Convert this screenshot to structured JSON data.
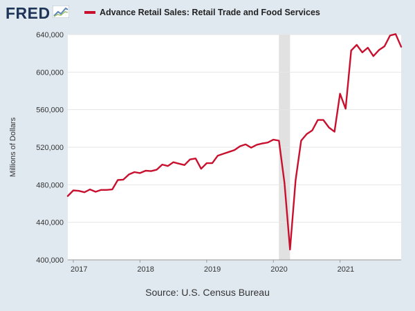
{
  "logo": {
    "text": "FRED",
    "icon": "line-chart-icon"
  },
  "legend": {
    "label": "Advance Retail Sales: Retail Trade and Food Services",
    "color": "#c8102e"
  },
  "source": "Source: U.S. Census Bureau",
  "chart_data": {
    "type": "line",
    "title": "Advance Retail Sales: Retail Trade and Food Services",
    "ylabel": "Millions of Dollars",
    "xlabel": "",
    "ylim": [
      400000,
      640000
    ],
    "xlim": [
      "2016-12",
      "2021-12"
    ],
    "yticks": [
      {
        "value": 400000,
        "label": "400,000"
      },
      {
        "value": 440000,
        "label": "440,000"
      },
      {
        "value": 480000,
        "label": "480,000"
      },
      {
        "value": 520000,
        "label": "520,000"
      },
      {
        "value": 560000,
        "label": "560,000"
      },
      {
        "value": 600000,
        "label": "600,000"
      },
      {
        "value": 640000,
        "label": "640,000"
      }
    ],
    "xticks": [
      {
        "value": "2017-01",
        "label": "2017"
      },
      {
        "value": "2018-01",
        "label": "2018"
      },
      {
        "value": "2019-01",
        "label": "2019"
      },
      {
        "value": "2020-01",
        "label": "2020"
      },
      {
        "value": "2021-01",
        "label": "2021"
      }
    ],
    "grid": true,
    "recession": {
      "start": "2020-02",
      "end": "2020-04"
    },
    "series": [
      {
        "name": "Advance Retail Sales: Retail Trade and Food Services",
        "color": "#c8102e",
        "x": [
          "2016-12",
          "2017-01",
          "2017-02",
          "2017-03",
          "2017-04",
          "2017-05",
          "2017-06",
          "2017-07",
          "2017-08",
          "2017-09",
          "2017-10",
          "2017-11",
          "2017-12",
          "2018-01",
          "2018-02",
          "2018-03",
          "2018-04",
          "2018-05",
          "2018-06",
          "2018-07",
          "2018-08",
          "2018-09",
          "2018-10",
          "2018-11",
          "2018-12",
          "2019-01",
          "2019-02",
          "2019-03",
          "2019-04",
          "2019-05",
          "2019-06",
          "2019-07",
          "2019-08",
          "2019-09",
          "2019-10",
          "2019-11",
          "2019-12",
          "2020-01",
          "2020-02",
          "2020-03",
          "2020-04",
          "2020-05",
          "2020-06",
          "2020-07",
          "2020-08",
          "2020-09",
          "2020-10",
          "2020-11",
          "2020-12",
          "2021-01",
          "2021-02",
          "2021-03",
          "2021-04",
          "2021-05",
          "2021-06",
          "2021-07",
          "2021-08",
          "2021-09",
          "2021-10",
          "2021-11",
          "2021-12"
        ],
        "y": [
          468000,
          474000,
          473500,
          472000,
          475000,
          472500,
          474500,
          474500,
          475000,
          485000,
          485500,
          491000,
          493500,
          492500,
          495000,
          494500,
          496000,
          501500,
          500000,
          504000,
          502500,
          501000,
          507000,
          508000,
          497000,
          503000,
          503000,
          511000,
          513000,
          515000,
          517000,
          521000,
          523000,
          519500,
          522500,
          524000,
          525000,
          528000,
          527000,
          482000,
          411000,
          485000,
          527000,
          534000,
          538000,
          549000,
          549000,
          541000,
          536500,
          577000,
          561000,
          623000,
          629000,
          621000,
          626000,
          617000,
          623500,
          627500,
          639000,
          640500,
          627000
        ]
      }
    ]
  }
}
